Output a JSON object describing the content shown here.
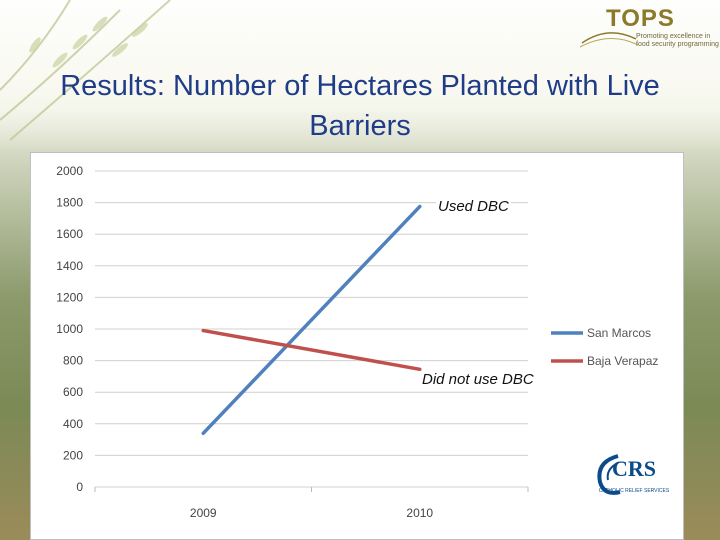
{
  "header": {
    "title": "Results:   Number of Hectares Planted with Live Barriers",
    "logo_word": "TOPS",
    "logo_tagline": "Promoting excellence in food security programming"
  },
  "crs_logo": {
    "word": "CRS",
    "sub": "CATHOLIC RELIEF SERVICES"
  },
  "chart_data": {
    "type": "line",
    "categories": [
      "2009",
      "2010"
    ],
    "series": [
      {
        "name": "San Marcos",
        "values": [
          340,
          1775
        ],
        "color": "#4f81bd"
      },
      {
        "name": "Baja Verapaz",
        "values": [
          990,
          745
        ],
        "color": "#c0504d"
      }
    ],
    "ylim": [
      0,
      2000
    ],
    "yticks": [
      0,
      200,
      400,
      600,
      800,
      1000,
      1200,
      1400,
      1600,
      1800,
      2000
    ],
    "grid": true,
    "legend": "right",
    "annotations": [
      {
        "text": "Used DBC",
        "series": "San Marcos"
      },
      {
        "text": "Did not use DBC",
        "series": "Baja Verapaz"
      }
    ]
  }
}
